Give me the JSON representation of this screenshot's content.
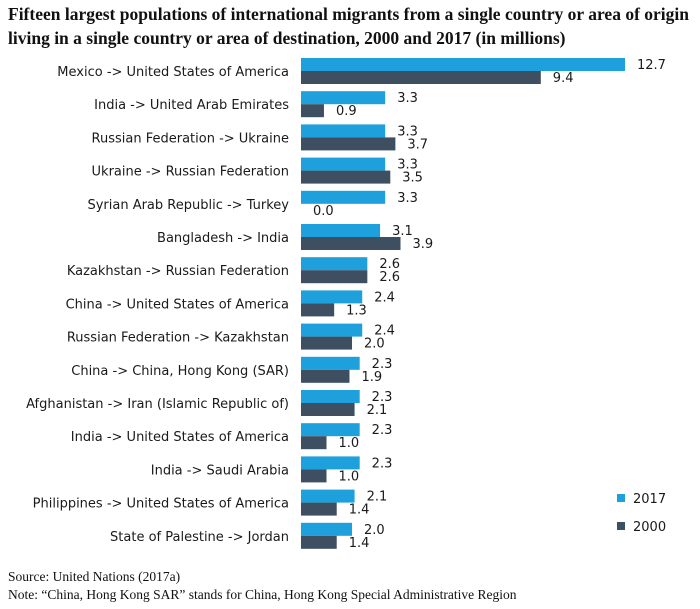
{
  "chart_data": {
    "type": "bar",
    "orientation": "horizontal",
    "title": "Fifteen largest populations of international migrants from a single country or area of origin living in a single country or area of destination, 2000 and 2017 (in millions)",
    "title_lines": [
      "Fifteen largest populations of international migrants from a single country or area of origin",
      "living in a single country or area of destination, 2000 and 2017 (in millions)"
    ],
    "categories": [
      "Mexico -> United States of America",
      "India -> United Arab Emirates",
      "Russian Federation -> Ukraine",
      "Ukraine -> Russian Federation",
      "Syrian Arab Republic -> Turkey",
      "Bangladesh -> India",
      "Kazakhstan -> Russian Federation",
      "China -> United States of America",
      "Russian Federation -> Kazakhstan",
      "China -> China, Hong Kong (SAR)",
      "Afghanistan -> Iran (Islamic Republic of)",
      "India -> United States of America",
      "India -> Saudi Arabia",
      "Philippines -> United States of America",
      "State of Palestine -> Jordan"
    ],
    "series": [
      {
        "name": "2017",
        "color": "#1ea0dc",
        "values": [
          12.7,
          3.3,
          3.3,
          3.3,
          3.3,
          3.1,
          2.6,
          2.4,
          2.4,
          2.3,
          2.3,
          2.3,
          2.3,
          2.1,
          2.0
        ],
        "labels": [
          "12.7",
          "3.3",
          "3.3",
          "3.3",
          "3.3",
          "3.1",
          "2.6",
          "2.4",
          "2.4",
          "2.3",
          "2.3",
          "2.3",
          "2.3",
          "2.1",
          "2.0"
        ]
      },
      {
        "name": "2000",
        "color": "#3d4f61",
        "values": [
          9.4,
          0.9,
          3.7,
          3.5,
          0.0,
          3.9,
          2.6,
          1.3,
          2.0,
          1.9,
          2.1,
          1.0,
          1.0,
          1.4,
          1.4
        ],
        "labels": [
          "9.4",
          "0.9",
          "3.7",
          "3.5",
          "0.0",
          "3.9",
          "2.6",
          "1.3",
          "2.0",
          "1.9",
          "2.1",
          "1.0",
          "1.0",
          "1.4",
          "1.4"
        ]
      }
    ],
    "xlim": [
      0,
      12.7
    ],
    "grid": false,
    "legend_position": "bottom-right"
  },
  "footer": {
    "source": "Source: United Nations (2017a)",
    "note": "Note: “China, Hong Kong SAR” stands for China, Hong Kong Special Administrative Region"
  }
}
